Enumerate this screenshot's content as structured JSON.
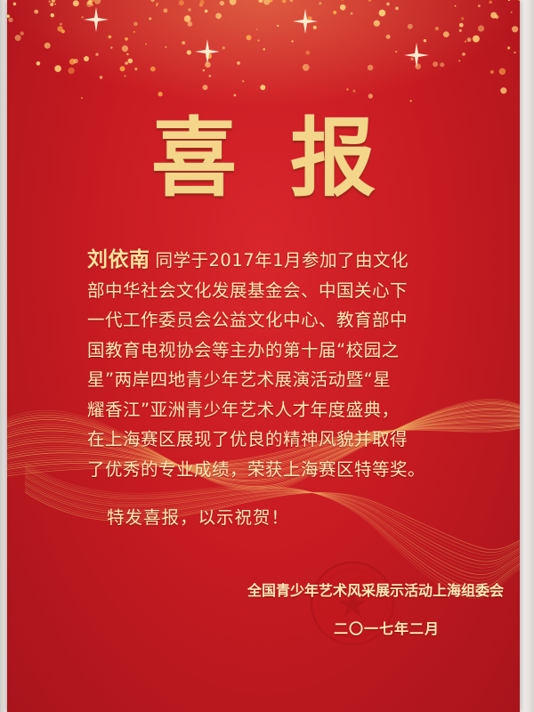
{
  "document": {
    "title": "喜报",
    "recipient_name": "刘依南",
    "body_lines": [
      "同学于2017年1月参加了由文化",
      "部中华社会文化发展基金会、中国关心下",
      "一代工作委员会公益文化中心、教育部中",
      "国教育电视协会等主办的第十届“校园之",
      "星”两岸四地青少年艺术展演活动暨“星",
      "耀香江”亚洲青少年艺术人才年度盛典，",
      "在上海赛区展现了优良的精神风貌并取得",
      "了优秀的专业成绩，荣获上海赛区特等奖。"
    ],
    "closing": "特发喜报，以示祝贺！",
    "organization": "全国青少年艺术风采展示活动上海组委会",
    "date": "二〇一七年二月"
  },
  "colors": {
    "background": "#c81b22",
    "gold_text": "#f3d689",
    "body_text": "#fde9b6",
    "seal": "#c4161c"
  },
  "icons": {
    "seal": "red-circular-seal-with-star",
    "decoration": "gold-sparkles-and-wave-lines"
  }
}
